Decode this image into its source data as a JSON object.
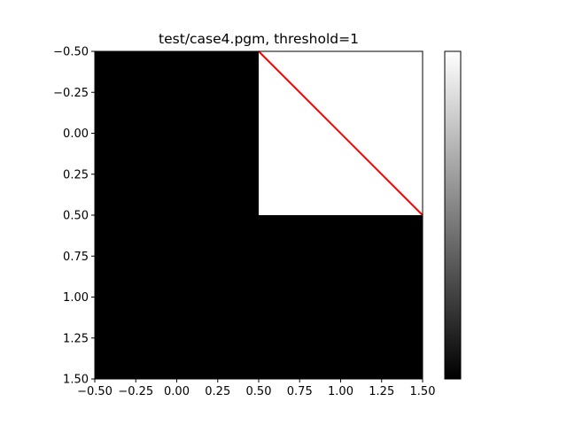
{
  "chart_data": {
    "type": "heatmap",
    "title": "test/case4.pgm, threshold=1",
    "xlabel": "",
    "ylabel": "",
    "xlim": [
      -0.5,
      1.5
    ],
    "ylim": [
      1.5,
      -0.5
    ],
    "y_inverted": true,
    "x_ticks": [
      "−0.50",
      "−0.25",
      "0.00",
      "0.25",
      "0.50",
      "0.75",
      "1.00",
      "1.25",
      "1.50"
    ],
    "x_tick_values": [
      -0.5,
      -0.25,
      0.0,
      0.25,
      0.5,
      0.75,
      1.0,
      1.25,
      1.5
    ],
    "y_ticks": [
      "−0.50",
      "−0.25",
      "0.00",
      "0.25",
      "0.50",
      "0.75",
      "1.00",
      "1.25",
      "1.50"
    ],
    "y_tick_values": [
      -0.5,
      -0.25,
      0.0,
      0.25,
      0.5,
      0.75,
      1.0,
      1.25,
      1.5
    ],
    "grid": [
      [
        0,
        1
      ],
      [
        0,
        0
      ]
    ],
    "colormap": "gray",
    "value_range": [
      0,
      1
    ],
    "colors": {
      "low": "#000000",
      "high": "#ffffff",
      "line": "#ff0000"
    },
    "overlay_line": {
      "x": [
        0.5,
        1.5
      ],
      "y": [
        -0.5,
        0.5
      ],
      "color": "#ff0000"
    },
    "colorbar": true,
    "grid_lines": false,
    "legend": "none"
  }
}
